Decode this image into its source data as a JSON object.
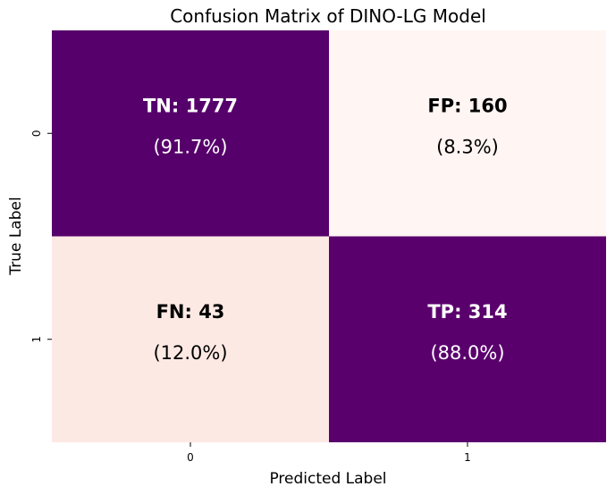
{
  "chart_data": {
    "type": "heatmap",
    "title": "Confusion Matrix of DINO-LG Model",
    "xlabel": "Predicted Label",
    "ylabel": "True Label",
    "x_categories": [
      "0",
      "1"
    ],
    "y_categories": [
      "0",
      "1"
    ],
    "cells": [
      [
        {
          "label": "TN: 1777",
          "value": 1777,
          "percent_text": "(91.7%)",
          "row_fraction": 0.917,
          "color": "#56006b",
          "text_color": "#ffffff"
        },
        {
          "label": "FP: 160",
          "value": 160,
          "percent_text": "(8.3%)",
          "row_fraction": 0.083,
          "color": "#fff5f2",
          "text_color": "#000000"
        }
      ],
      [
        {
          "label": "FN: 43",
          "value": 43,
          "percent_text": "(12.0%)",
          "row_fraction": 0.12,
          "color": "#fde9e4",
          "text_color": "#000000"
        },
        {
          "label": "TP: 314",
          "value": 314,
          "percent_text": "(88.0%)",
          "row_fraction": 0.88,
          "color": "#5a006d",
          "text_color": "#ffffff"
        }
      ]
    ],
    "colorbar": false
  }
}
